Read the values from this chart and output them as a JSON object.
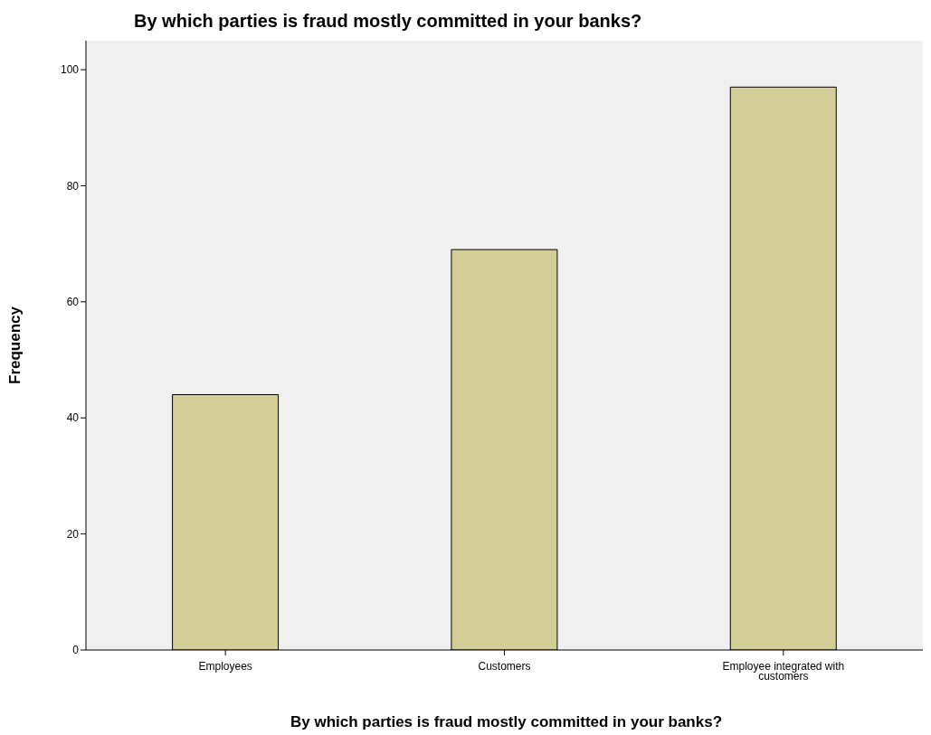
{
  "chart_data": {
    "type": "bar",
    "title": "By which parties is fraud mostly committed in your banks?",
    "xlabel": "By which parties is fraud mostly committed in your banks?",
    "ylabel": "Frequency",
    "categories": [
      "Employees",
      "Customers",
      "Employee integrated with customers"
    ],
    "values": [
      44,
      69,
      97
    ],
    "color": "#d3ce97",
    "ylim": [
      0,
      105
    ],
    "yticks": [
      0,
      20,
      40,
      60,
      80,
      100
    ],
    "grid": false
  }
}
